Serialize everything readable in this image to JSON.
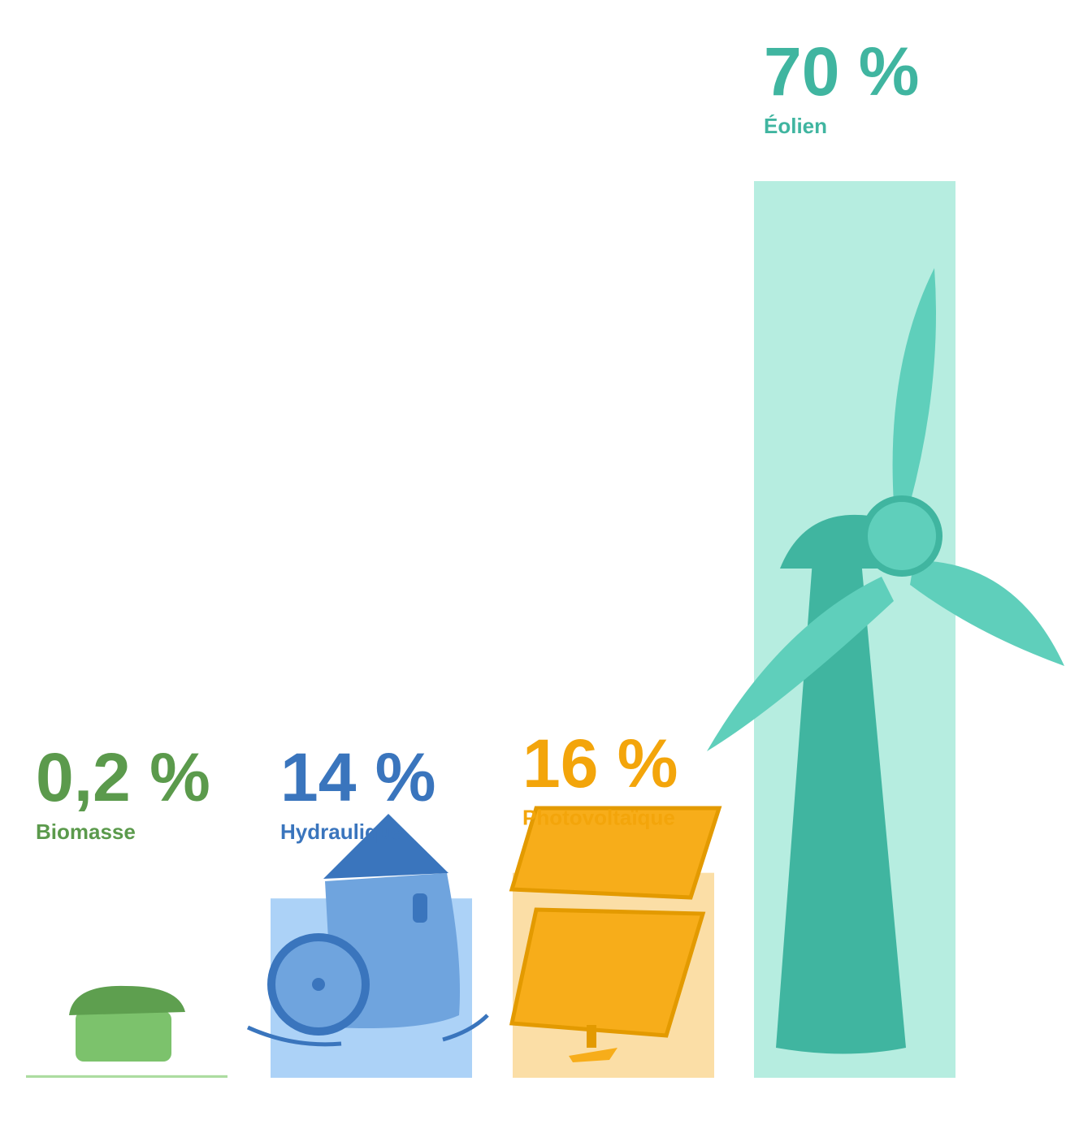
{
  "chart_data": {
    "type": "bar",
    "categories": [
      "Biomasse",
      "Hydraulique",
      "Photovoltaïque",
      "Éolien"
    ],
    "values": [
      0.2,
      14,
      16,
      70
    ],
    "value_labels": [
      "0,2 %",
      "14 %",
      "16 %",
      "70 %"
    ],
    "colors": [
      "#acdca0",
      "#acd2f7",
      "#fbdea6",
      "#b6ede0"
    ],
    "label_colors": [
      "#5b9a4c",
      "#3a75bd",
      "#f3a50b",
      "#40b5a0"
    ]
  }
}
